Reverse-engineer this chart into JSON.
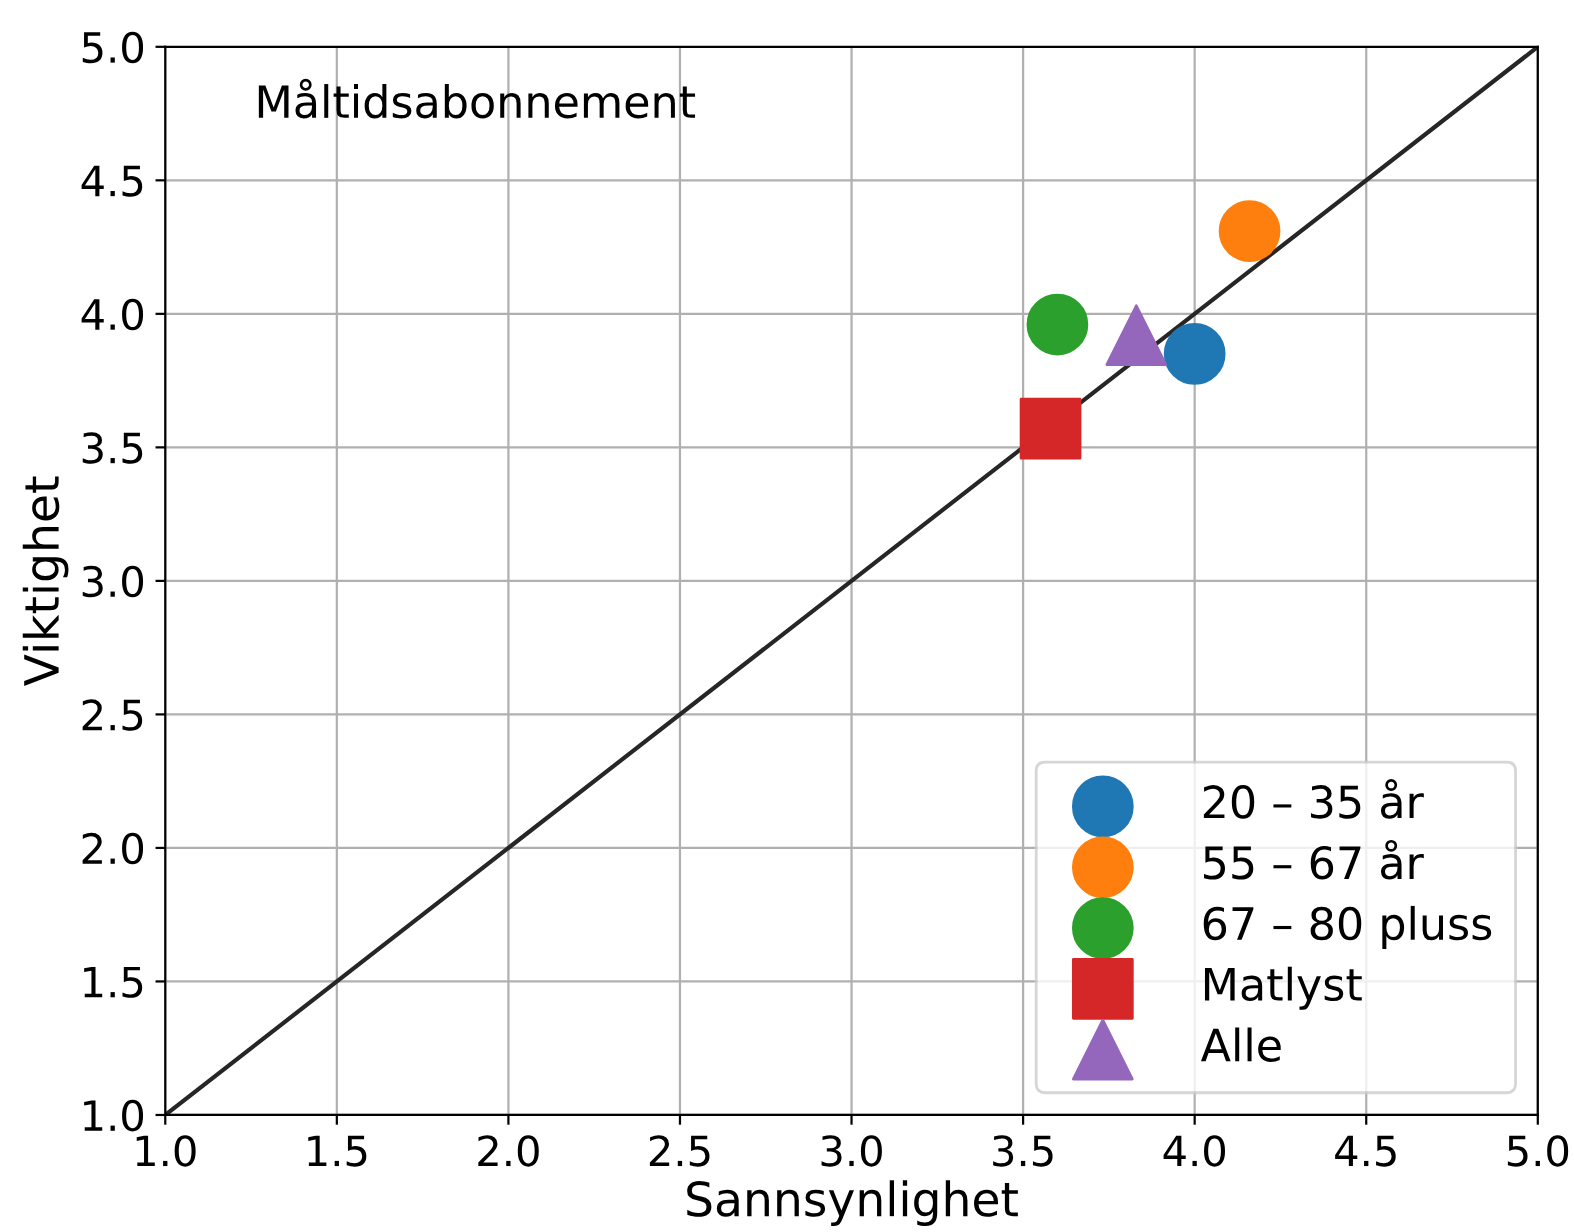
{
  "chart_data": {
    "type": "scatter",
    "xlabel": "Sannsynlighet",
    "ylabel": "Viktighet",
    "annotations": [
      "Måltidsabonnement"
    ],
    "xlim": [
      1.0,
      5.0
    ],
    "ylim": [
      1.0,
      5.0
    ],
    "xticks": [
      {
        "value": 1.0,
        "label": "1.0"
      },
      {
        "value": 1.5,
        "label": "1.5"
      },
      {
        "value": 2.0,
        "label": "2.0"
      },
      {
        "value": 2.5,
        "label": "2.5"
      },
      {
        "value": 3.0,
        "label": "3.0"
      },
      {
        "value": 3.5,
        "label": "3.5"
      },
      {
        "value": 4.0,
        "label": "4.0"
      },
      {
        "value": 4.5,
        "label": "4.5"
      },
      {
        "value": 5.0,
        "label": "5.0"
      }
    ],
    "yticks": [
      {
        "value": 1.0,
        "label": "1.0"
      },
      {
        "value": 1.5,
        "label": "1.5"
      },
      {
        "value": 2.0,
        "label": "2.0"
      },
      {
        "value": 2.5,
        "label": "2.5"
      },
      {
        "value": 3.0,
        "label": "3.0"
      },
      {
        "value": 3.5,
        "label": "3.5"
      },
      {
        "value": 4.0,
        "label": "4.0"
      },
      {
        "value": 4.5,
        "label": "4.5"
      },
      {
        "value": 5.0,
        "label": "5.0"
      }
    ],
    "grid": true,
    "legend": "bottom right",
    "series": [
      {
        "type": "line",
        "color": "#262626",
        "x": [
          1.0,
          5.0
        ],
        "values": [
          1.0,
          5.0
        ],
        "marker": "none"
      },
      {
        "name": "20 – 35 år",
        "color": "#1f77b4",
        "x": [
          4.0
        ],
        "values": [
          3.85
        ],
        "marker": "circle"
      },
      {
        "name": "55 – 67 år",
        "color": "#ff7f0e",
        "x": [
          4.16
        ],
        "values": [
          4.31
        ],
        "marker": "circle"
      },
      {
        "name": "67 – 80 pluss",
        "color": "#2ca02c",
        "x": [
          3.6
        ],
        "values": [
          3.96
        ],
        "marker": "circle"
      },
      {
        "name": "Matlyst",
        "color": "#d62728",
        "x": [
          3.58
        ],
        "values": [
          3.57
        ],
        "marker": "square"
      },
      {
        "name": "Alle",
        "color": "#9467bd",
        "x": [
          3.83
        ],
        "values": [
          3.92
        ],
        "marker": "triangle"
      }
    ]
  }
}
